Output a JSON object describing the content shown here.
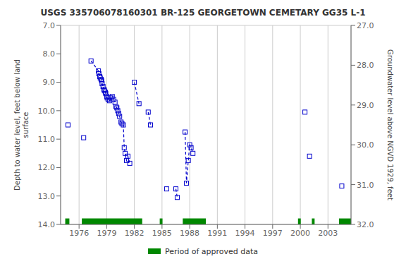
{
  "chart_data": {
    "type": "line",
    "title": "USGS 335706078160301 BR-125 GEORGETOWN CEMETARY GG35 L-1",
    "y_label": "Depth to water level, feet below land\nsurface",
    "y2_label": "Groundwater level above NGVD 1929, feet",
    "xlim": [
      1974.0,
      2005.5
    ],
    "xticks": [
      1976,
      1979,
      1982,
      1985,
      1988,
      1991,
      1994,
      1997,
      2000,
      2003
    ],
    "ylim": [
      14.0,
      7.0
    ],
    "yticks": [
      {
        "value": 7.0,
        "label": "7.0"
      },
      {
        "value": 8.0,
        "label": "8.0"
      },
      {
        "value": 9.0,
        "label": "9.0"
      },
      {
        "value": 10.0,
        "label": "10.0"
      },
      {
        "value": 11.0,
        "label": "11.0"
      },
      {
        "value": 12.0,
        "label": "12.0"
      },
      {
        "value": 13.0,
        "label": "13.0"
      },
      {
        "value": 14.0,
        "label": "14.0"
      }
    ],
    "y2lim": [
      32.0,
      27.0
    ],
    "y2ticks": [
      {
        "value": 32.0,
        "label": "32.0"
      },
      {
        "value": 31.0,
        "label": "31.0"
      },
      {
        "value": 30.0,
        "label": "30.0"
      },
      {
        "value": 29.0,
        "label": "29.0"
      },
      {
        "value": 28.0,
        "label": "28.0"
      },
      {
        "value": 27.0,
        "label": "27.0"
      }
    ],
    "grid": true,
    "color": "#0000cc",
    "marker": "square",
    "line_style": "dashed",
    "segments": [
      [
        [
          1974.8,
          10.5
        ]
      ],
      [
        [
          1976.5,
          10.95
        ]
      ],
      [
        [
          1977.3,
          8.25
        ],
        [
          1978.1,
          8.6
        ],
        [
          1978.15,
          8.7
        ],
        [
          1978.25,
          8.8
        ],
        [
          1978.3,
          8.85
        ],
        [
          1978.4,
          8.9
        ],
        [
          1978.45,
          8.95
        ],
        [
          1978.5,
          9.05
        ],
        [
          1978.6,
          9.15
        ],
        [
          1978.7,
          9.25
        ],
        [
          1978.75,
          9.3
        ],
        [
          1978.85,
          9.35
        ],
        [
          1978.9,
          9.4
        ],
        [
          1979.0,
          9.5
        ],
        [
          1979.05,
          9.55
        ],
        [
          1979.15,
          9.6
        ],
        [
          1979.3,
          9.65
        ],
        [
          1979.45,
          9.55
        ],
        [
          1979.6,
          9.5
        ],
        [
          1979.75,
          9.6
        ],
        [
          1979.9,
          9.7
        ]
      ],
      [
        [
          1980.0,
          9.85
        ],
        [
          1980.1,
          9.9
        ],
        [
          1980.2,
          10.0
        ],
        [
          1980.3,
          10.1
        ],
        [
          1980.4,
          10.2
        ],
        [
          1980.55,
          10.4
        ],
        [
          1980.65,
          10.45
        ],
        [
          1980.8,
          10.5
        ],
        [
          1980.9,
          11.3
        ],
        [
          1981.0,
          11.5
        ],
        [
          1981.15,
          11.75
        ],
        [
          1981.3,
          11.6
        ],
        [
          1981.5,
          11.85
        ]
      ],
      [
        [
          1982.0,
          9.0
        ],
        [
          1982.5,
          9.75
        ]
      ],
      [
        [
          1983.5,
          10.05
        ],
        [
          1983.75,
          10.5
        ]
      ],
      [
        [
          1985.5,
          12.75
        ]
      ],
      [
        [
          1986.5,
          12.75
        ],
        [
          1986.65,
          13.05
        ]
      ],
      [
        [
          1987.5,
          10.75
        ],
        [
          1987.65,
          12.55
        ],
        [
          1987.85,
          11.75
        ],
        [
          1988.0,
          11.2
        ],
        [
          1988.15,
          11.3
        ],
        [
          1988.35,
          11.5
        ]
      ],
      [
        [
          2000.5,
          10.05
        ]
      ],
      [
        [
          2001.0,
          11.6
        ]
      ],
      [
        [
          2004.5,
          12.65
        ]
      ]
    ],
    "approved_periods": {
      "name": "Period of approved data",
      "color": "#008800",
      "ranges": [
        [
          1974.5,
          1974.95
        ],
        [
          1976.3,
          1982.85
        ],
        [
          1984.75,
          1985.05
        ],
        [
          1987.25,
          1989.75
        ],
        [
          1999.75,
          2000.05
        ],
        [
          2001.25,
          2001.55
        ],
        [
          2004.2,
          2005.5
        ]
      ]
    },
    "legend": "bottom"
  }
}
